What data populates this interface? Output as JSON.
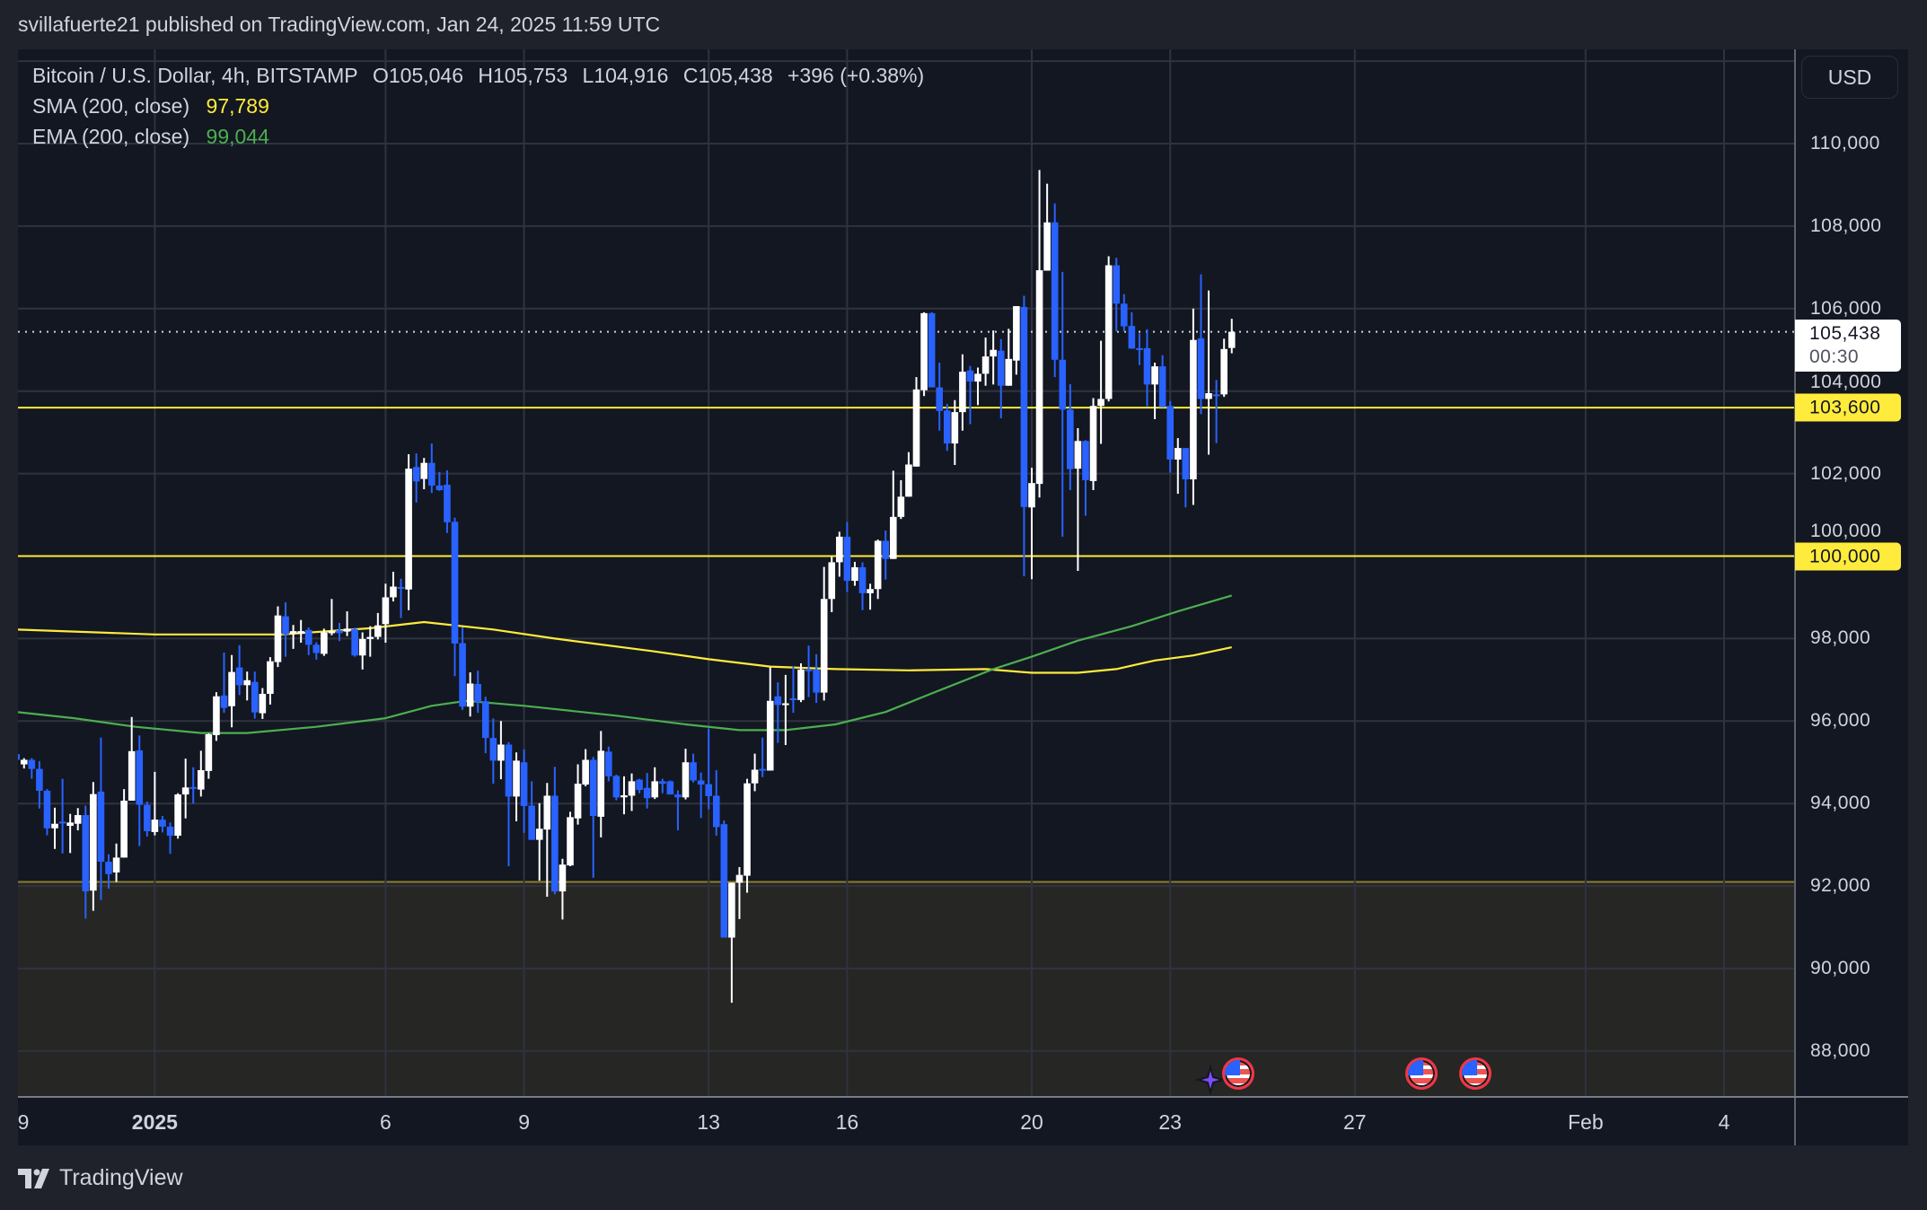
{
  "publisher_line": "svillafuerte21 published on TradingView.com, Jan 24, 2025 11:59 UTC",
  "legend": {
    "symbol": "Bitcoin / U.S. Dollar, 4h, BITSTAMP",
    "open": "O105,046",
    "high": "H105,753",
    "low": "L104,916",
    "close": "C105,438",
    "change": "+396 (+0.38%)",
    "sma_label": "SMA (200, close)",
    "sma_value": "97,789",
    "ema_label": "EMA (200, close)",
    "ema_value": "99,044"
  },
  "currency_button": "USD",
  "price_axis": {
    "ticks": [
      "110,000",
      "108,000",
      "106,000",
      "104,000",
      "102,000",
      "100,000",
      "98,000",
      "96,000",
      "94,000",
      "92,000",
      "90,000",
      "88,000"
    ],
    "tick_values": [
      110000,
      108000,
      106000,
      104000,
      102000,
      100000,
      98000,
      96000,
      94000,
      92000,
      90000,
      88000
    ],
    "last_price": "105,438",
    "countdown": "00:30",
    "level_labels": [
      "103,600",
      "100,000"
    ]
  },
  "time_axis": {
    "ticks": [
      {
        "label": "9",
        "date": "2024-12-29"
      },
      {
        "label": "2025",
        "date": "2025-01-01"
      },
      {
        "label": "6",
        "date": "2025-01-06"
      },
      {
        "label": "9",
        "date": "2025-01-09"
      },
      {
        "label": "13",
        "date": "2025-01-13"
      },
      {
        "label": "16",
        "date": "2025-01-16"
      },
      {
        "label": "20",
        "date": "2025-01-20"
      },
      {
        "label": "23",
        "date": "2025-01-23"
      },
      {
        "label": "27",
        "date": "2025-01-27"
      },
      {
        "label": "Feb",
        "date": "2025-02-01"
      },
      {
        "label": "4",
        "date": "2025-02-04"
      }
    ]
  },
  "footer": {
    "brand": "TradingView",
    "logo_icon": "tradingview-logo-icon"
  },
  "event_icons": [
    "ai-sparkle-icon",
    "us-flag-economic-event-icon",
    "us-flag-economic-event-icon",
    "us-flag-economic-event-icon"
  ],
  "colors": {
    "background": "#131722",
    "up_candle": "#ffffff",
    "down_candle": "#2962ff",
    "sma": "#ffeb3b",
    "ema": "#4caf50",
    "level_line": "#ffeb3b",
    "zone_fill": "#262624",
    "zone_border": "#8a7f2a"
  },
  "chart_data": {
    "type": "candlestick",
    "symbol": "Bitcoin / U.S. Dollar",
    "interval": "4h",
    "ylim": [
      86900,
      112000
    ],
    "grid": true,
    "start": "2024-12-29T00:00",
    "ohlc": [
      [
        95200,
        95300,
        95000,
        95060
      ],
      [
        94950,
        95100,
        94850,
        95060
      ],
      [
        95060,
        95100,
        94600,
        94840
      ],
      [
        94840,
        95030,
        93880,
        94310
      ],
      [
        94310,
        94350,
        93230,
        93400
      ],
      [
        93400,
        93900,
        92900,
        93510
      ],
      [
        93560,
        94600,
        92790,
        93540
      ],
      [
        93460,
        93750,
        92800,
        93540
      ],
      [
        93510,
        93890,
        93350,
        93720
      ],
      [
        93720,
        93950,
        91210,
        91870
      ],
      [
        91890,
        94520,
        91400,
        94230
      ],
      [
        94290,
        95600,
        91660,
        92590
      ],
      [
        92590,
        92770,
        91940,
        92290
      ],
      [
        92330,
        93030,
        92100,
        92690
      ],
      [
        92690,
        94350,
        92690,
        94070
      ],
      [
        94070,
        96100,
        94070,
        95270
      ],
      [
        95290,
        95650,
        92970,
        93970
      ],
      [
        93970,
        94050,
        93200,
        93330
      ],
      [
        93310,
        94770,
        93230,
        93610
      ],
      [
        93610,
        93700,
        93300,
        93440
      ],
      [
        93440,
        93540,
        92780,
        93220
      ],
      [
        93220,
        94250,
        93150,
        94220
      ],
      [
        94220,
        95090,
        93640,
        94390
      ],
      [
        94400,
        94880,
        94000,
        94390
      ],
      [
        94340,
        95280,
        94170,
        94810
      ],
      [
        94790,
        95700,
        94600,
        95680
      ],
      [
        95660,
        96700,
        95520,
        96600
      ],
      [
        96620,
        97660,
        96200,
        96320
      ],
      [
        96360,
        97600,
        95850,
        97190
      ],
      [
        97300,
        97840,
        96630,
        96870
      ],
      [
        96870,
        97200,
        96500,
        96990
      ],
      [
        96950,
        97200,
        96060,
        96210
      ],
      [
        96190,
        96800,
        96050,
        96660
      ],
      [
        96660,
        97550,
        96400,
        97450
      ],
      [
        97430,
        98780,
        97310,
        98560
      ],
      [
        98540,
        98880,
        97560,
        98100
      ],
      [
        98120,
        98330,
        97750,
        98180
      ],
      [
        98120,
        98450,
        97900,
        98180
      ],
      [
        98210,
        98270,
        97600,
        97850
      ],
      [
        97850,
        97910,
        97490,
        97650
      ],
      [
        97630,
        98240,
        97580,
        98150
      ],
      [
        98130,
        98960,
        98080,
        98180
      ],
      [
        98200,
        98380,
        97940,
        98130
      ],
      [
        98170,
        98660,
        98060,
        98240
      ],
      [
        98230,
        98260,
        97560,
        97590
      ],
      [
        97590,
        98150,
        97250,
        97990
      ],
      [
        97990,
        98300,
        97560,
        98040
      ],
      [
        98040,
        98620,
        97980,
        98320
      ],
      [
        98350,
        99330,
        97900,
        99000
      ],
      [
        99000,
        99620,
        98900,
        99260
      ],
      [
        99250,
        99450,
        98500,
        99240
      ],
      [
        99190,
        102470,
        98690,
        102120
      ],
      [
        102160,
        102490,
        101300,
        101810
      ],
      [
        101870,
        102380,
        101620,
        102260
      ],
      [
        102260,
        102730,
        101530,
        101710
      ],
      [
        101710,
        102040,
        101580,
        101600
      ],
      [
        101730,
        102080,
        100560,
        100820
      ],
      [
        100830,
        100930,
        97090,
        97880
      ],
      [
        97890,
        98270,
        96270,
        96350
      ],
      [
        96350,
        97180,
        96110,
        96910
      ],
      [
        96900,
        97220,
        96200,
        96460
      ],
      [
        96480,
        96590,
        95220,
        95590
      ],
      [
        95590,
        96060,
        94480,
        95040
      ],
      [
        95040,
        96000,
        94590,
        95430
      ],
      [
        95430,
        95490,
        92480,
        94170
      ],
      [
        94170,
        95240,
        93570,
        95040
      ],
      [
        95000,
        95310,
        93290,
        93940
      ],
      [
        93950,
        94540,
        93120,
        93120
      ],
      [
        93120,
        94010,
        92130,
        93390
      ],
      [
        93370,
        94500,
        91740,
        94190
      ],
      [
        94190,
        94890,
        91800,
        91870
      ],
      [
        91870,
        92660,
        91190,
        92520
      ],
      [
        92500,
        93800,
        92480,
        93670
      ],
      [
        93640,
        94950,
        93490,
        94480
      ],
      [
        94460,
        95320,
        94420,
        95060
      ],
      [
        95060,
        95130,
        92200,
        93700
      ],
      [
        93680,
        95760,
        93180,
        95280
      ],
      [
        95260,
        95380,
        94540,
        94660
      ],
      [
        94670,
        94700,
        94080,
        94150
      ],
      [
        94150,
        94660,
        93740,
        94200
      ],
      [
        94190,
        94730,
        93820,
        94540
      ],
      [
        94580,
        94600,
        94250,
        94330
      ],
      [
        94380,
        94740,
        93880,
        94130
      ],
      [
        94150,
        94880,
        94110,
        94540
      ],
      [
        94540,
        94600,
        94250,
        94480
      ],
      [
        94540,
        94560,
        94220,
        94220
      ],
      [
        94220,
        94320,
        93350,
        94150
      ],
      [
        94150,
        95330,
        94100,
        95000
      ],
      [
        95000,
        95210,
        94510,
        94560
      ],
      [
        94560,
        94750,
        93650,
        94460
      ],
      [
        94470,
        95820,
        93860,
        94180
      ],
      [
        94190,
        94810,
        93220,
        93430
      ],
      [
        93500,
        93590,
        90750,
        90750
      ],
      [
        90750,
        92080,
        89170,
        92080
      ],
      [
        92080,
        92460,
        91200,
        92270
      ],
      [
        92250,
        94600,
        91840,
        94490
      ],
      [
        94490,
        95210,
        94300,
        94820
      ],
      [
        94840,
        95600,
        94640,
        94800
      ],
      [
        94800,
        97310,
        94800,
        96490
      ],
      [
        96600,
        96940,
        95470,
        96390
      ],
      [
        96420,
        97120,
        95420,
        96430
      ],
      [
        96550,
        97330,
        96200,
        96520
      ],
      [
        96510,
        97400,
        96460,
        97250
      ],
      [
        97250,
        97830,
        96580,
        97230
      ],
      [
        97250,
        97620,
        96440,
        96690
      ],
      [
        96690,
        99740,
        96500,
        98960
      ],
      [
        98960,
        99980,
        98640,
        99850
      ],
      [
        99850,
        100590,
        99500,
        100470
      ],
      [
        100470,
        100830,
        99130,
        99400
      ],
      [
        99400,
        99860,
        99280,
        99730
      ],
      [
        99730,
        99850,
        98690,
        99100
      ],
      [
        99100,
        99330,
        98700,
        99200
      ],
      [
        99200,
        100400,
        98960,
        100370
      ],
      [
        100370,
        100620,
        99430,
        99930
      ],
      [
        99930,
        102070,
        99930,
        100950
      ],
      [
        100950,
        101840,
        100900,
        101440
      ],
      [
        101440,
        102520,
        101440,
        102220
      ],
      [
        102170,
        104340,
        102170,
        104040
      ],
      [
        104020,
        105910,
        103880,
        105890
      ],
      [
        105890,
        105910,
        104090,
        104090
      ],
      [
        104090,
        104690,
        103040,
        103520
      ],
      [
        103530,
        103690,
        102550,
        102730
      ],
      [
        102730,
        103780,
        102210,
        103490
      ],
      [
        103490,
        104890,
        103040,
        104470
      ],
      [
        104500,
        104610,
        103200,
        104230
      ],
      [
        104230,
        104570,
        103660,
        104420
      ],
      [
        104420,
        105300,
        104130,
        104840
      ],
      [
        104840,
        105470,
        104160,
        105000
      ],
      [
        104980,
        105260,
        103340,
        104130
      ],
      [
        104130,
        105510,
        104130,
        104780
      ],
      [
        104740,
        106060,
        104400,
        106060
      ],
      [
        106040,
        106310,
        99510,
        101190
      ],
      [
        101180,
        102140,
        99440,
        101770
      ],
      [
        101750,
        109360,
        101420,
        106930
      ],
      [
        106920,
        109030,
        106920,
        108090
      ],
      [
        108090,
        108550,
        104340,
        104760
      ],
      [
        104760,
        106890,
        100470,
        103550
      ],
      [
        103550,
        104170,
        101600,
        102110
      ],
      [
        102120,
        103100,
        99640,
        102790
      ],
      [
        102790,
        102810,
        100980,
        101840
      ],
      [
        101820,
        103830,
        101600,
        103640
      ],
      [
        103640,
        105220,
        102720,
        103810
      ],
      [
        103810,
        107270,
        103750,
        107050
      ],
      [
        107050,
        107230,
        105450,
        106120
      ],
      [
        106120,
        106350,
        105450,
        105570
      ],
      [
        105580,
        105910,
        105030,
        105030
      ],
      [
        105040,
        105400,
        104630,
        105020
      ],
      [
        105040,
        105500,
        103630,
        104160
      ],
      [
        104160,
        104690,
        103320,
        104600
      ],
      [
        104600,
        104870,
        103610,
        103610
      ],
      [
        103640,
        103760,
        102020,
        102340
      ],
      [
        102340,
        102860,
        101510,
        102620
      ],
      [
        102620,
        102620,
        101180,
        101860
      ],
      [
        101860,
        106000,
        101240,
        105240
      ],
      [
        105280,
        106830,
        103440,
        103810
      ],
      [
        103810,
        106440,
        102460,
        103950
      ],
      [
        103920,
        104270,
        102740,
        103900
      ],
      [
        103920,
        105270,
        103860,
        105020
      ],
      [
        105046,
        105753,
        104916,
        105438
      ]
    ],
    "series": [
      {
        "name": "SMA (200, close)",
        "type": "line",
        "points": [
          [
            "2024-12-29T00:00",
            98220
          ],
          [
            "2025-01-01T00:00",
            98100
          ],
          [
            "2025-01-03T18:00",
            98100
          ],
          [
            "2025-01-05T16:00",
            98250
          ],
          [
            "2025-01-06T20:00",
            98400
          ],
          [
            "2025-01-08T08:00",
            98220
          ],
          [
            "2025-01-09T16:00",
            98000
          ],
          [
            "2025-01-11T18:00",
            97700
          ],
          [
            "2025-01-13T00:00",
            97500
          ],
          [
            "2025-01-14T08:00",
            97320
          ],
          [
            "2025-01-15T18:00",
            97260
          ],
          [
            "2025-01-17T08:00",
            97230
          ],
          [
            "2025-01-19T00:00",
            97260
          ],
          [
            "2025-01-20T00:00",
            97170
          ],
          [
            "2025-01-21T00:00",
            97170
          ],
          [
            "2025-01-21T20:00",
            97260
          ],
          [
            "2025-01-22T16:00",
            97470
          ],
          [
            "2025-01-23T12:00",
            97590
          ],
          [
            "2025-01-24T08:00",
            97789
          ]
        ]
      },
      {
        "name": "EMA (200, close)",
        "type": "line",
        "points": [
          [
            "2024-12-29T00:00",
            96220
          ],
          [
            "2024-12-30T06:00",
            96070
          ],
          [
            "2024-12-31T14:00",
            95860
          ],
          [
            "2025-01-02T00:00",
            95710
          ],
          [
            "2025-01-03T00:00",
            95710
          ],
          [
            "2025-01-04T12:00",
            95860
          ],
          [
            "2025-01-06T00:00",
            96070
          ],
          [
            "2025-01-07T00:00",
            96370
          ],
          [
            "2025-01-07T18:00",
            96490
          ],
          [
            "2025-01-09T00:00",
            96370
          ],
          [
            "2025-01-11T00:00",
            96130
          ],
          [
            "2025-01-12T12:00",
            95920
          ],
          [
            "2025-01-13T16:00",
            95780
          ],
          [
            "2025-01-14T16:00",
            95780
          ],
          [
            "2025-01-15T18:00",
            95920
          ],
          [
            "2025-01-16T20:00",
            96220
          ],
          [
            "2025-01-17T20:00",
            96670
          ],
          [
            "2025-01-19T04:00",
            97260
          ],
          [
            "2025-01-20T00:00",
            97560
          ],
          [
            "2025-01-21T00:00",
            97950
          ],
          [
            "2025-01-22T04:00",
            98300
          ],
          [
            "2025-01-23T04:00",
            98660
          ],
          [
            "2025-01-24T08:00",
            99044
          ]
        ]
      }
    ],
    "horizontal_levels": [
      103600,
      100000
    ],
    "last_price_line": 105438,
    "shaded_zone": {
      "from": 92100,
      "to": "bottom"
    }
  }
}
